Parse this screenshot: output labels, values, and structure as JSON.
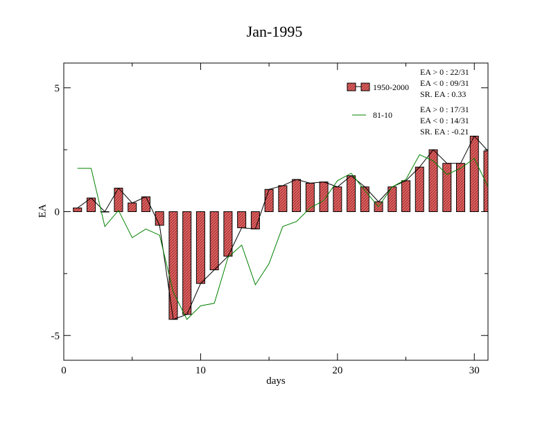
{
  "chart_data": {
    "type": "bar",
    "title": "Jan-1995",
    "xlabel": "days",
    "ylabel": "EA",
    "xlim": [
      0,
      31
    ],
    "ylim": [
      -6,
      6
    ],
    "x_ticks": [
      0,
      10,
      20,
      30
    ],
    "y_ticks": [
      -5,
      0,
      5
    ],
    "grid": false,
    "legend_position": "top-right",
    "series": [
      {
        "name": "1950-2000",
        "kind": "bar",
        "color": "#e06060",
        "x": [
          1,
          2,
          3,
          4,
          5,
          6,
          7,
          8,
          9,
          10,
          11,
          12,
          13,
          14,
          15,
          16,
          17,
          18,
          19,
          20,
          21,
          22,
          23,
          24,
          25,
          26,
          27,
          28,
          29,
          30,
          31
        ],
        "values": [
          0.15,
          0.55,
          0.0,
          0.95,
          0.35,
          0.6,
          -0.55,
          -4.35,
          -4.15,
          -2.9,
          -2.35,
          -1.8,
          -0.65,
          -0.7,
          0.9,
          1.05,
          1.3,
          1.15,
          1.2,
          1.0,
          1.45,
          1.0,
          0.4,
          1.0,
          1.25,
          1.8,
          2.5,
          1.95,
          1.95,
          3.05,
          2.45
        ]
      },
      {
        "name": "81-10",
        "kind": "line",
        "color": "#008000",
        "x": [
          1,
          2,
          3,
          4,
          5,
          6,
          7,
          8,
          9,
          10,
          11,
          12,
          13,
          14,
          15,
          16,
          17,
          18,
          19,
          20,
          21,
          22,
          23,
          24,
          25,
          26,
          27,
          28,
          29,
          30,
          31
        ],
        "values": [
          1.75,
          1.75,
          -0.6,
          0.05,
          -1.05,
          -0.7,
          -0.95,
          -3.25,
          -4.35,
          -3.8,
          -3.7,
          -1.85,
          -1.35,
          -2.95,
          -2.1,
          -0.6,
          -0.4,
          0.15,
          0.45,
          1.25,
          1.55,
          0.85,
          0.2,
          1.0,
          1.3,
          2.3,
          2.05,
          1.5,
          1.75,
          2.15,
          1.0
        ]
      }
    ],
    "annotations": {
      "series1_stats": [
        "EA > 0 : 22/31",
        "EA < 0 : 09/31",
        "SR. EA :  0.33"
      ],
      "series2_stats": [
        "EA > 0 : 17/31",
        "EA < 0 : 14/31",
        "SR. EA : -0.21"
      ]
    }
  }
}
